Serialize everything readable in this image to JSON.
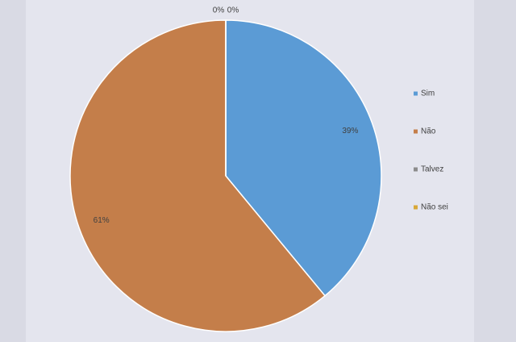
{
  "chart_data": {
    "type": "pie",
    "categories": [
      "Sim",
      "Não",
      "Talvez",
      "Não sei"
    ],
    "values": [
      39,
      61,
      0,
      0
    ],
    "value_labels": [
      "39%",
      "61%",
      "0%",
      "0%"
    ],
    "colors": [
      "#5b9bd5",
      "#c47e4a",
      "#8c8c8c",
      "#d8a838"
    ],
    "legend": "right"
  }
}
